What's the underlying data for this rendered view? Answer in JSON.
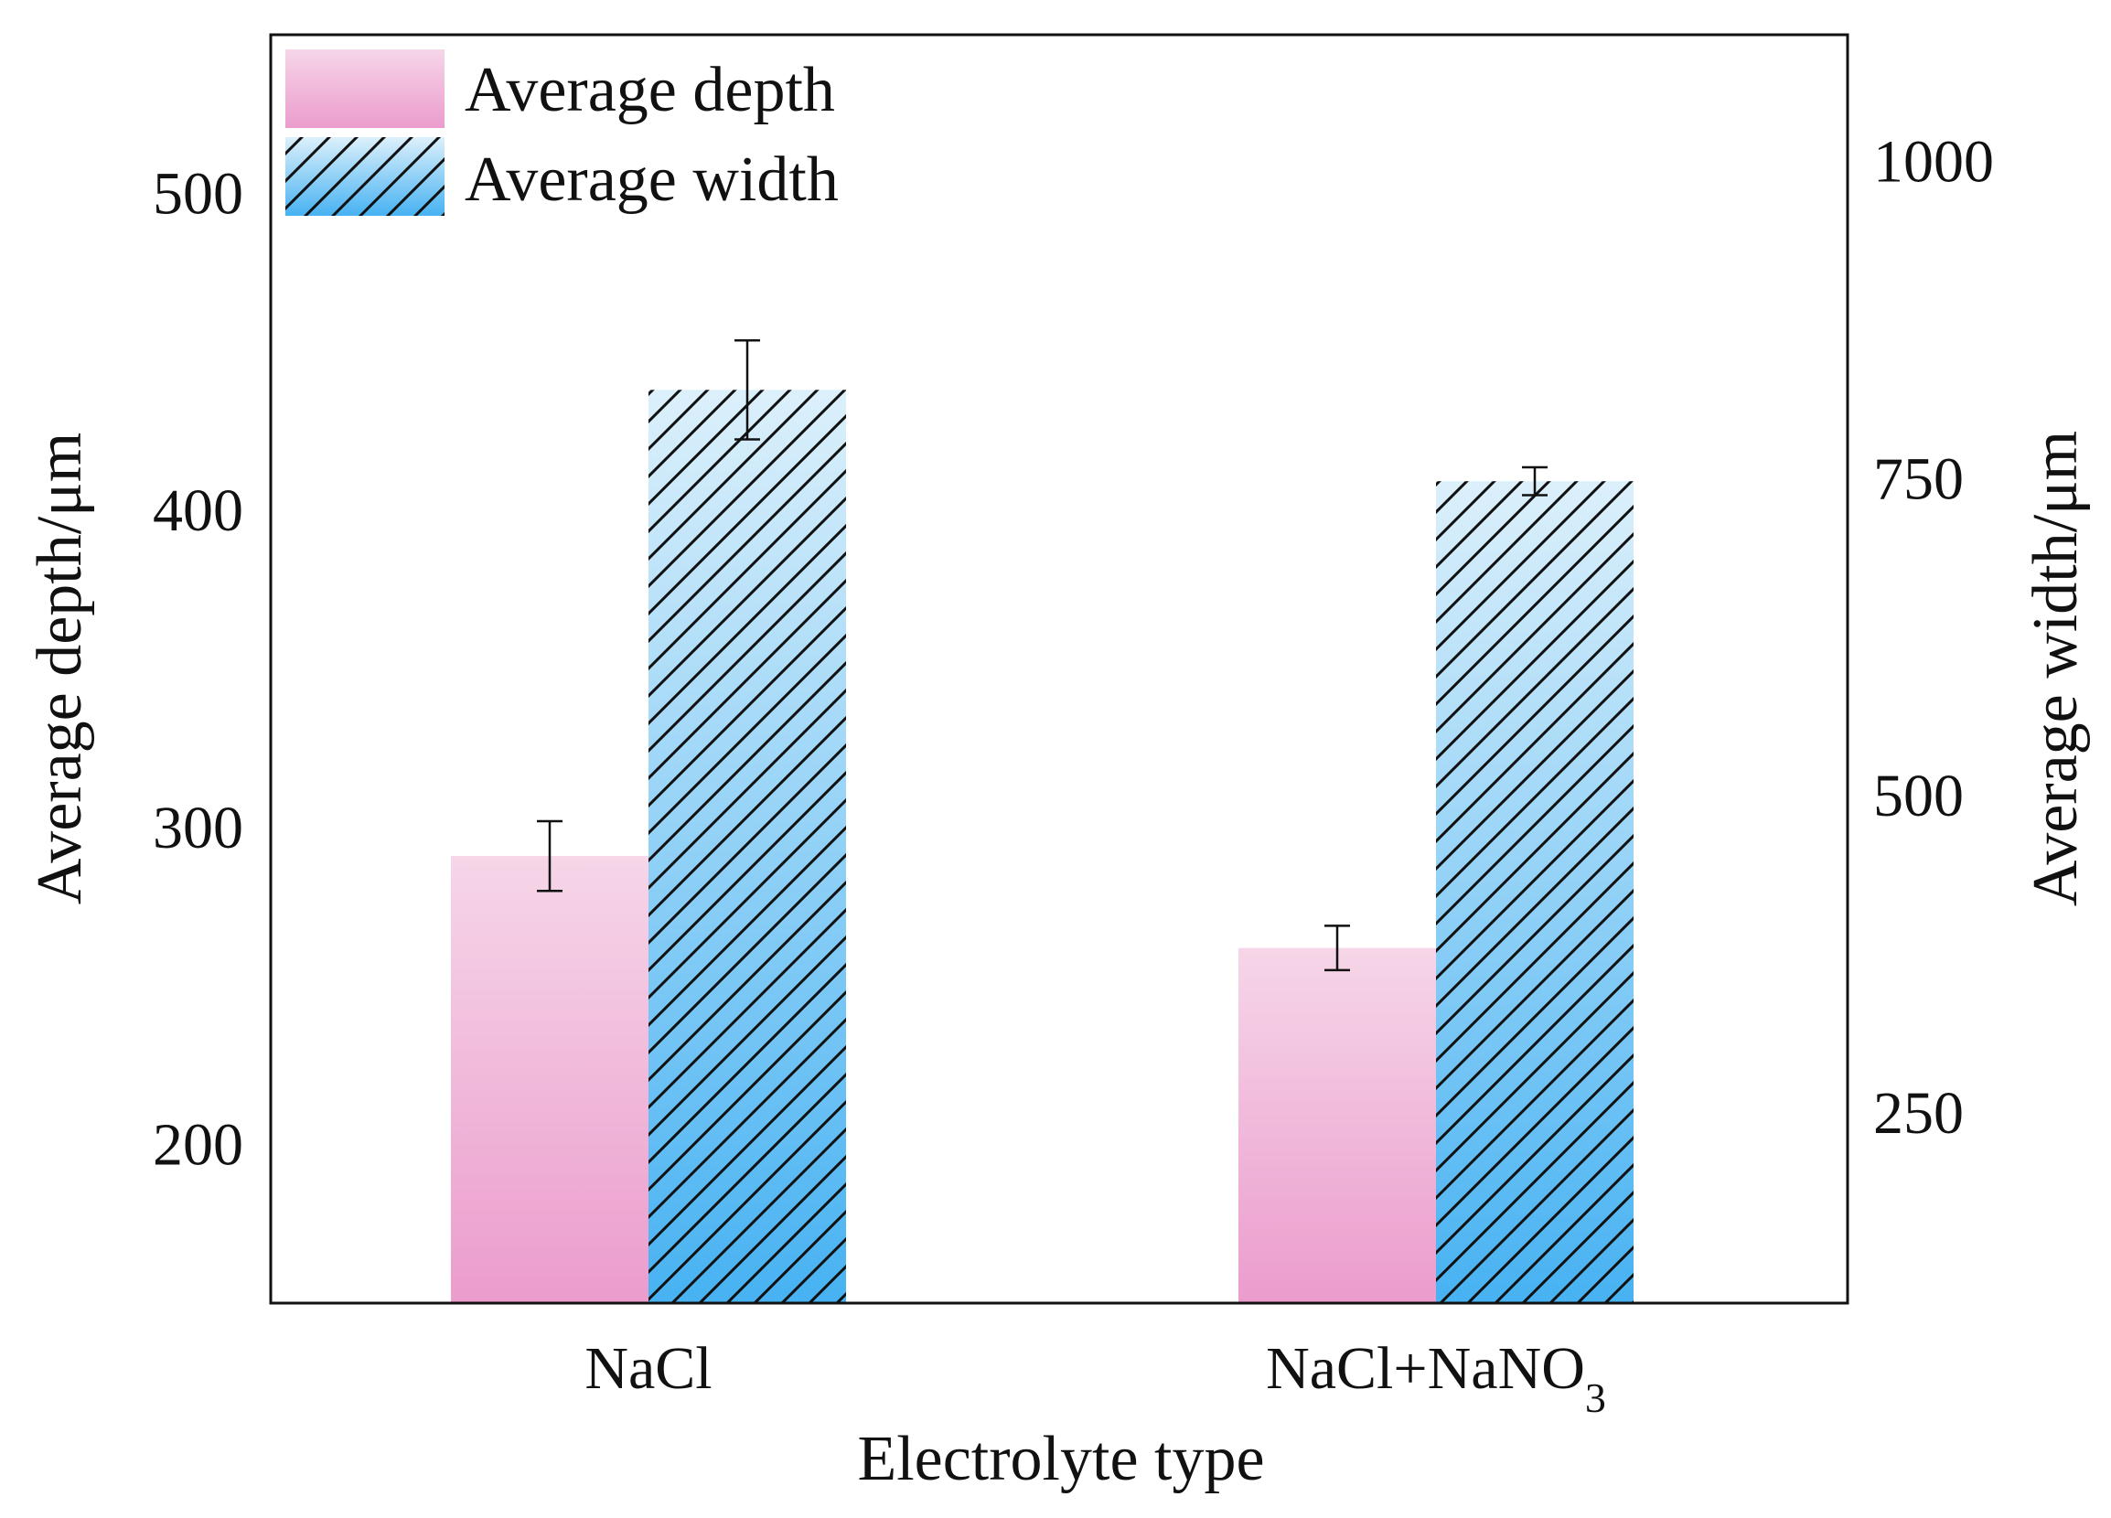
{
  "chart_data": {
    "type": "bar",
    "title": "",
    "xlabel": "Electrolyte type",
    "categories": [
      {
        "base": "NaCl",
        "sub": ""
      },
      {
        "base": "NaCl+NaNO",
        "sub": "3"
      }
    ],
    "left_axis": {
      "label": "Average depth/μm",
      "ylim": [
        150,
        550
      ],
      "ticks": [
        200,
        300,
        400,
        500
      ]
    },
    "right_axis": {
      "label": "Average width/μm",
      "ylim": [
        100,
        1100
      ],
      "ticks": [
        250,
        500,
        750,
        1000
      ]
    },
    "series": [
      {
        "name": "Average depth",
        "axis": "left",
        "values": [
          291,
          262
        ],
        "errors": [
          11,
          7
        ],
        "style": "pink-gradient"
      },
      {
        "name": "Average width",
        "axis": "right",
        "values": [
          820,
          748
        ],
        "errors": [
          39,
          11
        ],
        "style": "blue-gradient-hatched"
      }
    ],
    "legend": "top-left",
    "grid": false
  },
  "colors": {
    "depth_top": "#f6d6e8",
    "depth_bottom": "#eb9ccd",
    "width_top": "#dcf0fb",
    "width_bottom": "#47b2f2",
    "axis": "#111111"
  }
}
